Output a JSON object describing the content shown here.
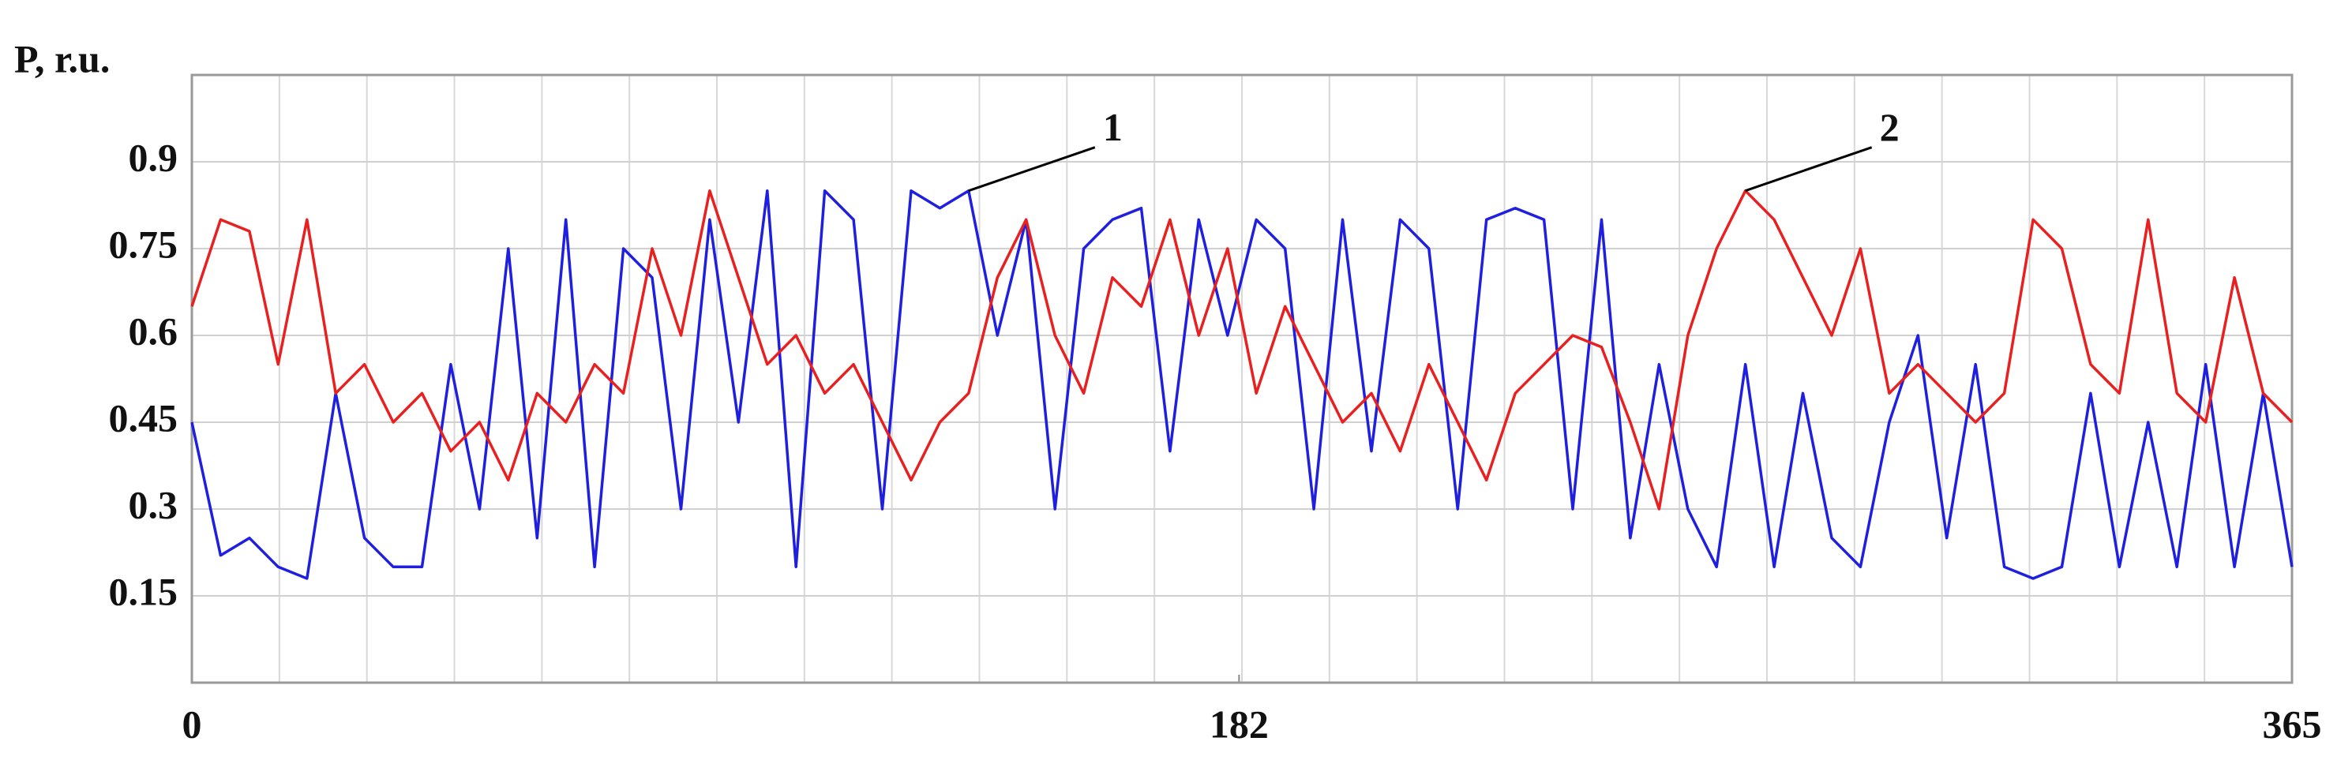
{
  "chart_data": {
    "type": "line",
    "y_label": "P, r.u.",
    "annotations": [
      "1",
      "2"
    ],
    "x": [
      0,
      5,
      10,
      15,
      20,
      25,
      30,
      35,
      40,
      45,
      50,
      55,
      60,
      65,
      70,
      75,
      80,
      85,
      90,
      95,
      100,
      105,
      110,
      115,
      120,
      125,
      130,
      135,
      140,
      145,
      150,
      155,
      160,
      165,
      170,
      175,
      180,
      185,
      190,
      195,
      200,
      205,
      210,
      215,
      220,
      225,
      230,
      235,
      240,
      245,
      250,
      255,
      260,
      265,
      270,
      275,
      280,
      285,
      290,
      295,
      300,
      305,
      310,
      315,
      320,
      325,
      330,
      335,
      340,
      345,
      350,
      355,
      360,
      365
    ],
    "series": [
      {
        "color": "#1f1fe0",
        "values": [
          0.45,
          0.22,
          0.25,
          0.2,
          0.18,
          0.5,
          0.25,
          0.2,
          0.2,
          0.55,
          0.3,
          0.75,
          0.25,
          0.8,
          0.2,
          0.75,
          0.7,
          0.3,
          0.8,
          0.45,
          0.85,
          0.2,
          0.85,
          0.8,
          0.3,
          0.85,
          0.82,
          0.85,
          0.6,
          0.8,
          0.3,
          0.75,
          0.8,
          0.82,
          0.4,
          0.8,
          0.6,
          0.8,
          0.75,
          0.3,
          0.8,
          0.4,
          0.8,
          0.75,
          0.3,
          0.8,
          0.82,
          0.8,
          0.3,
          0.8,
          0.25,
          0.55,
          0.3,
          0.2,
          0.55,
          0.2,
          0.5,
          0.25,
          0.2,
          0.45,
          0.6,
          0.25,
          0.55,
          0.2,
          0.18,
          0.2,
          0.5,
          0.2,
          0.45,
          0.2,
          0.55,
          0.2,
          0.5,
          0.2
        ]
      },
      {
        "color": "#e82020",
        "values": [
          0.65,
          0.8,
          0.78,
          0.55,
          0.8,
          0.5,
          0.55,
          0.45,
          0.5,
          0.4,
          0.45,
          0.35,
          0.5,
          0.45,
          0.55,
          0.5,
          0.75,
          0.6,
          0.85,
          0.7,
          0.55,
          0.6,
          0.5,
          0.55,
          0.45,
          0.35,
          0.45,
          0.5,
          0.7,
          0.8,
          0.6,
          0.5,
          0.7,
          0.65,
          0.8,
          0.6,
          0.75,
          0.5,
          0.65,
          0.55,
          0.45,
          0.5,
          0.4,
          0.55,
          0.45,
          0.35,
          0.5,
          0.55,
          0.6,
          0.58,
          0.45,
          0.3,
          0.6,
          0.75,
          0.85,
          0.8,
          0.7,
          0.6,
          0.75,
          0.5,
          0.55,
          0.5,
          0.45,
          0.5,
          0.8,
          0.75,
          0.55,
          0.5,
          0.8,
          0.5,
          0.45,
          0.7,
          0.5,
          0.45
        ]
      }
    ],
    "xlim": [
      0,
      365
    ],
    "xticks": [
      0,
      182,
      365
    ],
    "ylim": [
      0,
      1.05
    ],
    "yticks": [
      0.15,
      0.3,
      0.45,
      0.6,
      0.75,
      0.9
    ],
    "grid": true
  }
}
